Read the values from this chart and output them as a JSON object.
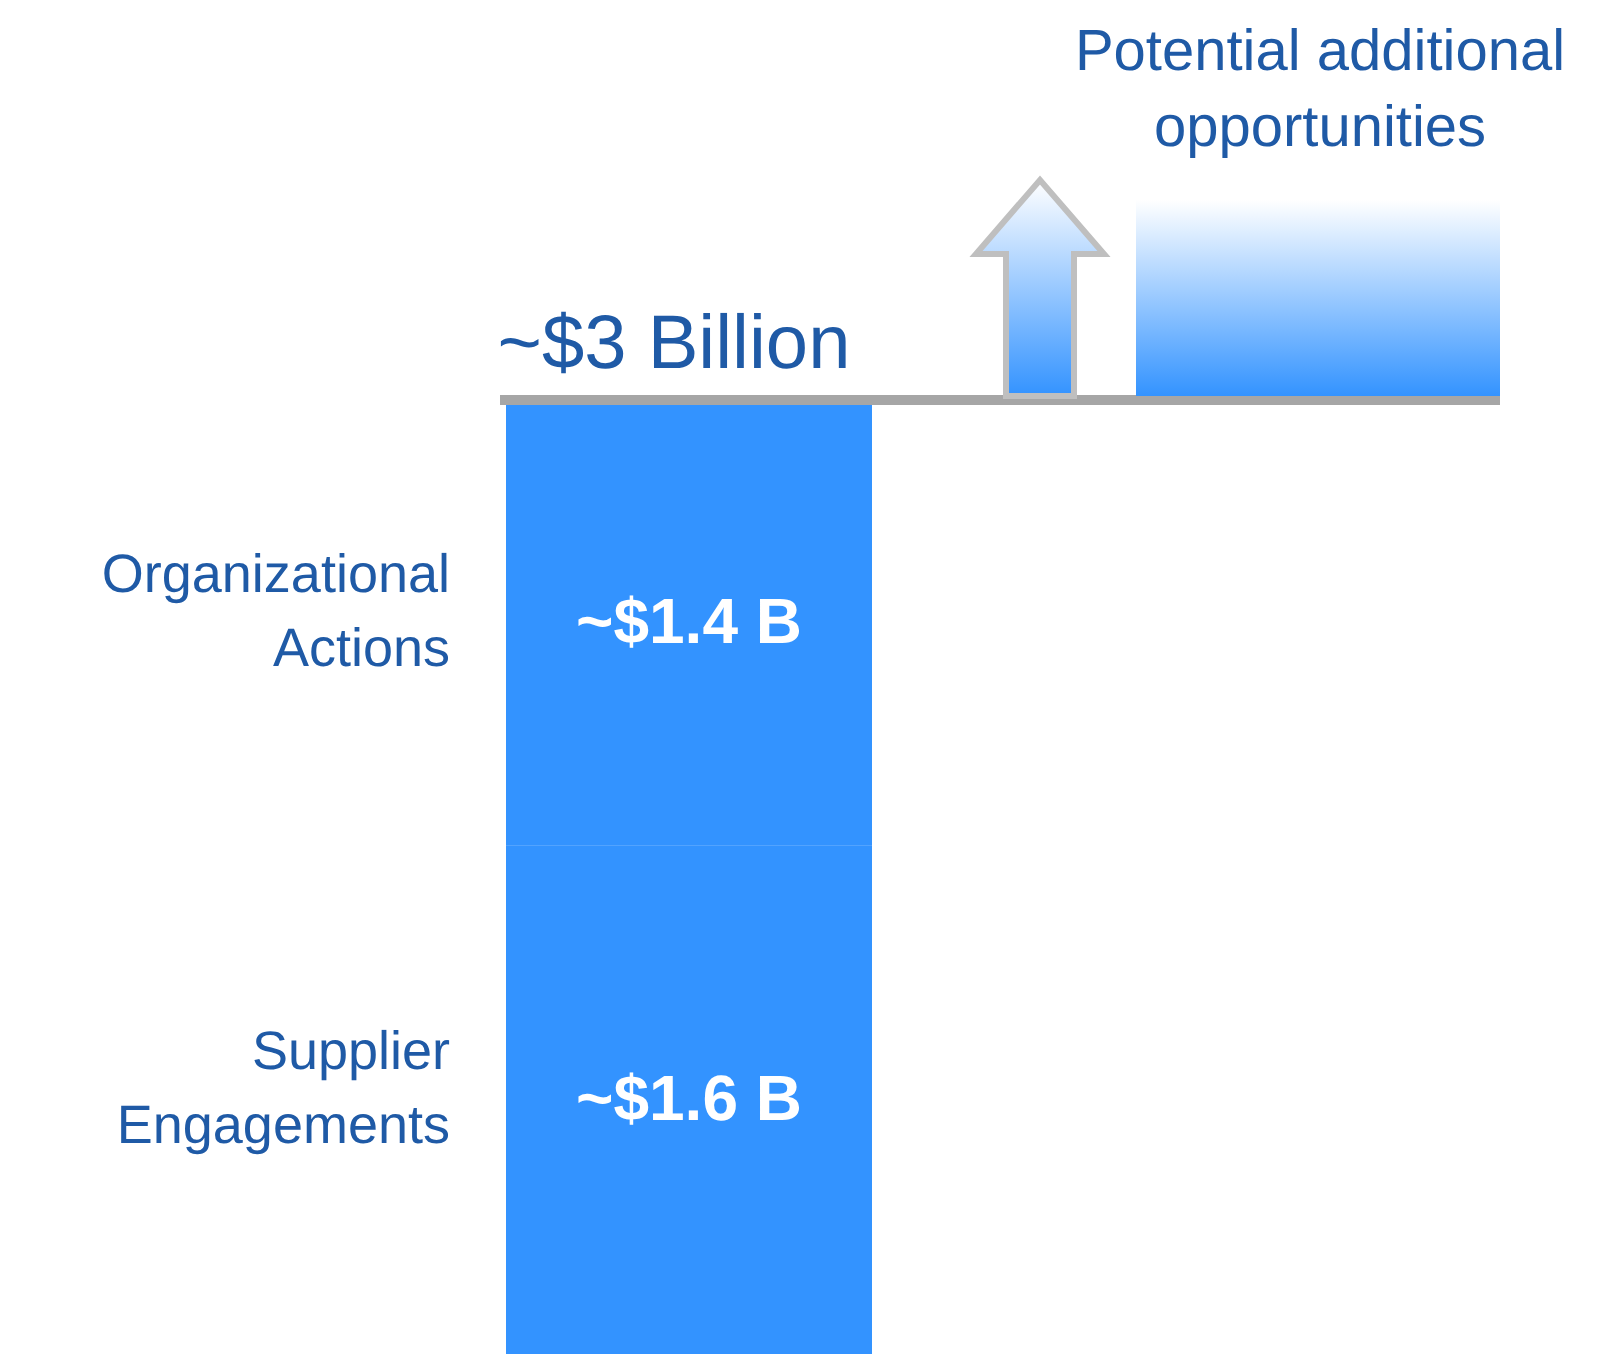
{
  "chart_data": {
    "type": "bar",
    "stacked": true,
    "categories": [
      null
    ],
    "series": [
      {
        "name": "Supplier Engagements",
        "color": "#3393ff",
        "values": [
          1.6
        ],
        "value_labels": [
          "~$1.6 B"
        ]
      },
      {
        "name": "Organizational Actions",
        "color": "#3393ff",
        "values": [
          1.4
        ],
        "value_labels": [
          "~$1.4 B"
        ]
      }
    ],
    "ref_lines": [
      {
        "axis": "y",
        "value": 3,
        "label": "~$3 Billion",
        "color": "#a6a6a6"
      }
    ],
    "annotations": [
      "Potential additional opportunities"
    ]
  }
}
